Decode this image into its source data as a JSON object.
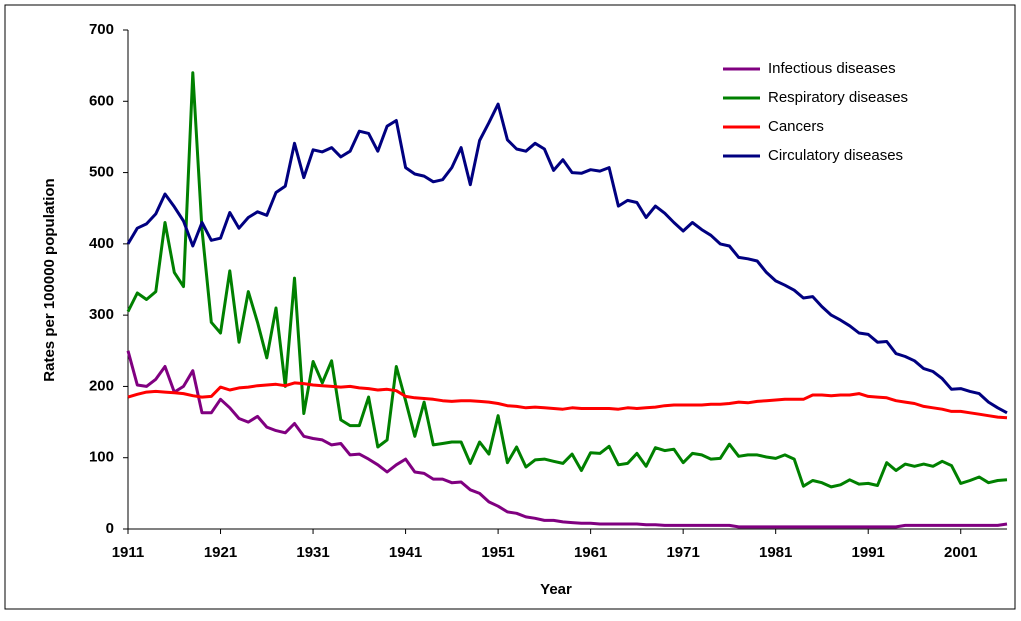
{
  "chart_data": {
    "type": "line",
    "x_label": "Year",
    "y_label": "Rates per 100000 population",
    "x": [
      1911,
      1912,
      1913,
      1914,
      1915,
      1916,
      1917,
      1918,
      1919,
      1920,
      1921,
      1922,
      1923,
      1924,
      1925,
      1926,
      1927,
      1928,
      1929,
      1930,
      1931,
      1932,
      1933,
      1934,
      1935,
      1936,
      1937,
      1938,
      1939,
      1940,
      1941,
      1942,
      1943,
      1944,
      1945,
      1946,
      1947,
      1948,
      1949,
      1950,
      1951,
      1952,
      1953,
      1954,
      1955,
      1956,
      1957,
      1958,
      1959,
      1960,
      1961,
      1962,
      1963,
      1964,
      1965,
      1966,
      1967,
      1968,
      1969,
      1970,
      1971,
      1972,
      1973,
      1974,
      1975,
      1976,
      1977,
      1978,
      1979,
      1980,
      1981,
      1982,
      1983,
      1984,
      1985,
      1986,
      1987,
      1988,
      1989,
      1990,
      1991,
      1992,
      1993,
      1994,
      1995,
      1996,
      1997,
      1998,
      1999,
      2000,
      2001,
      2002,
      2003,
      2004,
      2005,
      2006
    ],
    "xlim": [
      1911,
      2006
    ],
    "xticks": [
      1911,
      1921,
      1931,
      1941,
      1951,
      1961,
      1971,
      1981,
      1991,
      2001
    ],
    "ylim": [
      0,
      700
    ],
    "yticks": [
      0,
      100,
      200,
      300,
      400,
      500,
      600,
      700
    ],
    "legend": "top-right",
    "series": [
      {
        "name": "Infectious diseases",
        "color": "#800080",
        "values": [
          250,
          202,
          200,
          210,
          228,
          192,
          200,
          222,
          163,
          163,
          182,
          170,
          155,
          150,
          158,
          143,
          138,
          135,
          148,
          130,
          127,
          125,
          118,
          120,
          104,
          105,
          98,
          90,
          80,
          90,
          98,
          80,
          78,
          70,
          70,
          65,
          66,
          55,
          50,
          38,
          32,
          24,
          22,
          17,
          15,
          12,
          12,
          10,
          9,
          8,
          8,
          7,
          7,
          7,
          7,
          7,
          6,
          6,
          5,
          5,
          5,
          5,
          5,
          5,
          5,
          5,
          3,
          3,
          3,
          3,
          3,
          3,
          3,
          3,
          3,
          3,
          3,
          3,
          3,
          3,
          3,
          3,
          3,
          3,
          5,
          5,
          5,
          5,
          5,
          5,
          5,
          5,
          5,
          5,
          5,
          7
        ]
      },
      {
        "name": "Respiratory diseases",
        "color": "#008000",
        "values": [
          305,
          331,
          322,
          333,
          430,
          360,
          340,
          640,
          420,
          290,
          275,
          362,
          262,
          333,
          290,
          240,
          310,
          200,
          352,
          162,
          235,
          205,
          236,
          153,
          145,
          145,
          185,
          115,
          125,
          228,
          180,
          130,
          178,
          118,
          120,
          122,
          122,
          92,
          122,
          105,
          159,
          93,
          115,
          87,
          97,
          98,
          95,
          92,
          105,
          82,
          107,
          106,
          116,
          90,
          92,
          106,
          88,
          114,
          110,
          112,
          93,
          106,
          104,
          98,
          99,
          119,
          102,
          104,
          104,
          101,
          99,
          104,
          98,
          60,
          68,
          65,
          59,
          62,
          69,
          63,
          64,
          61,
          93,
          82,
          91,
          88,
          91,
          88,
          95,
          89,
          64,
          68,
          73,
          65,
          68,
          69
        ]
      },
      {
        "name": "Cancers",
        "color": "#ff0000",
        "values": [
          185,
          189,
          192,
          193,
          192,
          191,
          190,
          187,
          185,
          186,
          199,
          195,
          198,
          199,
          201,
          202,
          203,
          201,
          205,
          204,
          202,
          201,
          200,
          199,
          200,
          198,
          197,
          195,
          196,
          194,
          186,
          184,
          183,
          182,
          180,
          179,
          180,
          180,
          179,
          178,
          176,
          173,
          172,
          170,
          171,
          170,
          169,
          168,
          170,
          169,
          169,
          169,
          169,
          168,
          170,
          169,
          170,
          171,
          173,
          174,
          174,
          174,
          174,
          175,
          175,
          176,
          178,
          177,
          179,
          180,
          181,
          182,
          182,
          182,
          188,
          188,
          187,
          188,
          188,
          190,
          186,
          185,
          184,
          180,
          178,
          176,
          172,
          170,
          168,
          165,
          165,
          163,
          161,
          159,
          157,
          156
        ]
      },
      {
        "name": "Circulatory diseases",
        "color": "#000080",
        "values": [
          400,
          422,
          428,
          442,
          470,
          452,
          432,
          397,
          430,
          405,
          408,
          444,
          422,
          437,
          445,
          440,
          472,
          481,
          541,
          493,
          532,
          529,
          535,
          522,
          530,
          558,
          555,
          530,
          565,
          573,
          507,
          498,
          495,
          487,
          490,
          507,
          535,
          483,
          545,
          570,
          596,
          546,
          533,
          530,
          541,
          533,
          503,
          518,
          500,
          499,
          504,
          502,
          507,
          453,
          461,
          458,
          437,
          453,
          443,
          430,
          418,
          430,
          420,
          412,
          400,
          397,
          381,
          379,
          376,
          360,
          348,
          342,
          335,
          324,
          326,
          312,
          300,
          293,
          285,
          275,
          273,
          262,
          263,
          246,
          242,
          236,
          225,
          221,
          211,
          196,
          197,
          193,
          190,
          178,
          170,
          163
        ]
      }
    ]
  }
}
